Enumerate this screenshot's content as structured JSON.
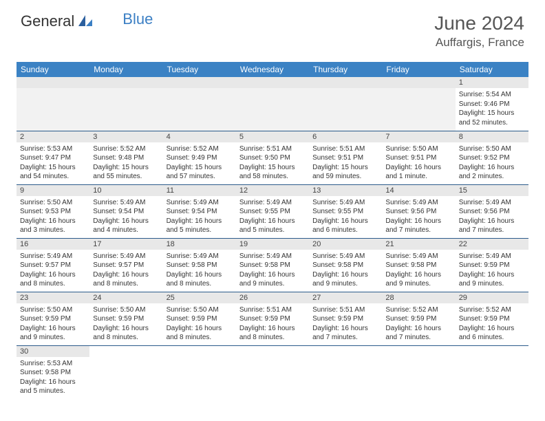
{
  "brand": {
    "part1": "General",
    "part2": "Blue"
  },
  "title": "June 2024",
  "location": "Auffargis, France",
  "colors": {
    "header_bg": "#3b82c4",
    "header_text": "#ffffff",
    "daynum_bg": "#e8e8e8",
    "rule": "#2a5a8a",
    "logo_blue": "#3b7fc4"
  },
  "columns": [
    "Sunday",
    "Monday",
    "Tuesday",
    "Wednesday",
    "Thursday",
    "Friday",
    "Saturday"
  ],
  "weeks": [
    [
      null,
      null,
      null,
      null,
      null,
      null,
      {
        "n": "1",
        "sr": "5:54 AM",
        "ss": "9:46 PM",
        "dl": "15 hours and 52 minutes."
      }
    ],
    [
      {
        "n": "2",
        "sr": "5:53 AM",
        "ss": "9:47 PM",
        "dl": "15 hours and 54 minutes."
      },
      {
        "n": "3",
        "sr": "5:52 AM",
        "ss": "9:48 PM",
        "dl": "15 hours and 55 minutes."
      },
      {
        "n": "4",
        "sr": "5:52 AM",
        "ss": "9:49 PM",
        "dl": "15 hours and 57 minutes."
      },
      {
        "n": "5",
        "sr": "5:51 AM",
        "ss": "9:50 PM",
        "dl": "15 hours and 58 minutes."
      },
      {
        "n": "6",
        "sr": "5:51 AM",
        "ss": "9:51 PM",
        "dl": "15 hours and 59 minutes."
      },
      {
        "n": "7",
        "sr": "5:50 AM",
        "ss": "9:51 PM",
        "dl": "16 hours and 1 minute."
      },
      {
        "n": "8",
        "sr": "5:50 AM",
        "ss": "9:52 PM",
        "dl": "16 hours and 2 minutes."
      }
    ],
    [
      {
        "n": "9",
        "sr": "5:50 AM",
        "ss": "9:53 PM",
        "dl": "16 hours and 3 minutes."
      },
      {
        "n": "10",
        "sr": "5:49 AM",
        "ss": "9:54 PM",
        "dl": "16 hours and 4 minutes."
      },
      {
        "n": "11",
        "sr": "5:49 AM",
        "ss": "9:54 PM",
        "dl": "16 hours and 5 minutes."
      },
      {
        "n": "12",
        "sr": "5:49 AM",
        "ss": "9:55 PM",
        "dl": "16 hours and 5 minutes."
      },
      {
        "n": "13",
        "sr": "5:49 AM",
        "ss": "9:55 PM",
        "dl": "16 hours and 6 minutes."
      },
      {
        "n": "14",
        "sr": "5:49 AM",
        "ss": "9:56 PM",
        "dl": "16 hours and 7 minutes."
      },
      {
        "n": "15",
        "sr": "5:49 AM",
        "ss": "9:56 PM",
        "dl": "16 hours and 7 minutes."
      }
    ],
    [
      {
        "n": "16",
        "sr": "5:49 AM",
        "ss": "9:57 PM",
        "dl": "16 hours and 8 minutes."
      },
      {
        "n": "17",
        "sr": "5:49 AM",
        "ss": "9:57 PM",
        "dl": "16 hours and 8 minutes."
      },
      {
        "n": "18",
        "sr": "5:49 AM",
        "ss": "9:58 PM",
        "dl": "16 hours and 8 minutes."
      },
      {
        "n": "19",
        "sr": "5:49 AM",
        "ss": "9:58 PM",
        "dl": "16 hours and 9 minutes."
      },
      {
        "n": "20",
        "sr": "5:49 AM",
        "ss": "9:58 PM",
        "dl": "16 hours and 9 minutes."
      },
      {
        "n": "21",
        "sr": "5:49 AM",
        "ss": "9:58 PM",
        "dl": "16 hours and 9 minutes."
      },
      {
        "n": "22",
        "sr": "5:49 AM",
        "ss": "9:59 PM",
        "dl": "16 hours and 9 minutes."
      }
    ],
    [
      {
        "n": "23",
        "sr": "5:50 AM",
        "ss": "9:59 PM",
        "dl": "16 hours and 9 minutes."
      },
      {
        "n": "24",
        "sr": "5:50 AM",
        "ss": "9:59 PM",
        "dl": "16 hours and 8 minutes."
      },
      {
        "n": "25",
        "sr": "5:50 AM",
        "ss": "9:59 PM",
        "dl": "16 hours and 8 minutes."
      },
      {
        "n": "26",
        "sr": "5:51 AM",
        "ss": "9:59 PM",
        "dl": "16 hours and 8 minutes."
      },
      {
        "n": "27",
        "sr": "5:51 AM",
        "ss": "9:59 PM",
        "dl": "16 hours and 7 minutes."
      },
      {
        "n": "28",
        "sr": "5:52 AM",
        "ss": "9:59 PM",
        "dl": "16 hours and 7 minutes."
      },
      {
        "n": "29",
        "sr": "5:52 AM",
        "ss": "9:59 PM",
        "dl": "16 hours and 6 minutes."
      }
    ],
    [
      {
        "n": "30",
        "sr": "5:53 AM",
        "ss": "9:58 PM",
        "dl": "16 hours and 5 minutes."
      },
      null,
      null,
      null,
      null,
      null,
      null
    ]
  ],
  "labels": {
    "sunrise": "Sunrise:",
    "sunset": "Sunset:",
    "daylight": "Daylight:"
  }
}
